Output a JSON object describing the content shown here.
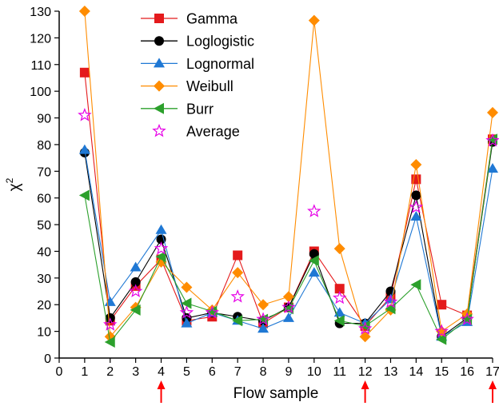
{
  "chart_data": {
    "type": "line",
    "title": "",
    "xlabel": "Flow sample",
    "ylabel": "χ",
    "ylabel_superscript": "2",
    "xlim": [
      0,
      17
    ],
    "ylim": [
      0,
      130
    ],
    "x_ticks": [
      0,
      1,
      2,
      3,
      4,
      5,
      6,
      7,
      8,
      9,
      10,
      11,
      12,
      13,
      14,
      15,
      16,
      17
    ],
    "y_ticks": [
      0,
      10,
      20,
      30,
      40,
      50,
      60,
      70,
      80,
      90,
      100,
      110,
      120,
      130
    ],
    "x": [
      1,
      2,
      3,
      4,
      5,
      6,
      7,
      8,
      9,
      10,
      11,
      12,
      13,
      14,
      15,
      16,
      17
    ],
    "legend_position": "top-left",
    "grid": false,
    "series": [
      {
        "name": "Gamma",
        "color": "#e41a1c",
        "marker": "square",
        "line": true,
        "values": [
          107,
          14,
          27,
          37,
          14,
          15.5,
          38.5,
          13,
          19,
          40,
          26,
          12,
          23,
          67,
          20,
          16,
          82
        ]
      },
      {
        "name": "Loglogistic",
        "color": "#000000",
        "marker": "circle",
        "line": true,
        "values": [
          77,
          15,
          28.5,
          44.5,
          15,
          17,
          15.5,
          14,
          19,
          39,
          13,
          13,
          25,
          61,
          8,
          15,
          81
        ]
      },
      {
        "name": "Lognormal",
        "color": "#1f78d4",
        "marker": "triangle-up",
        "line": true,
        "values": [
          78,
          21,
          34,
          48,
          13,
          17,
          14,
          11,
          15,
          32,
          17,
          13,
          22,
          53,
          8,
          13.5,
          71
        ]
      },
      {
        "name": "Weibull",
        "color": "#ff8c00",
        "marker": "diamond",
        "line": true,
        "values": [
          130,
          8,
          19,
          36,
          26.5,
          18,
          32,
          20,
          23,
          126.5,
          41,
          8,
          18,
          72.5,
          10,
          16.5,
          92
        ]
      },
      {
        "name": "Burr",
        "color": "#2ca02c",
        "marker": "triangle-left",
        "line": true,
        "values": [
          61,
          6,
          18,
          38,
          20.5,
          17.5,
          14,
          14.5,
          18.5,
          36.5,
          14,
          12,
          18.5,
          27.5,
          7,
          14.5,
          82
        ]
      },
      {
        "name": "Average",
        "color": "#e600e6",
        "marker": "star",
        "line": false,
        "values": [
          91,
          12.5,
          25,
          41,
          17,
          17,
          23,
          14.5,
          19,
          55,
          22.5,
          11,
          21,
          56.5,
          10,
          14.5,
          81.5
        ]
      }
    ],
    "annotations": {
      "arrows_at_x": [
        4,
        12,
        17
      ],
      "arrow_color": "#ff0000"
    }
  }
}
